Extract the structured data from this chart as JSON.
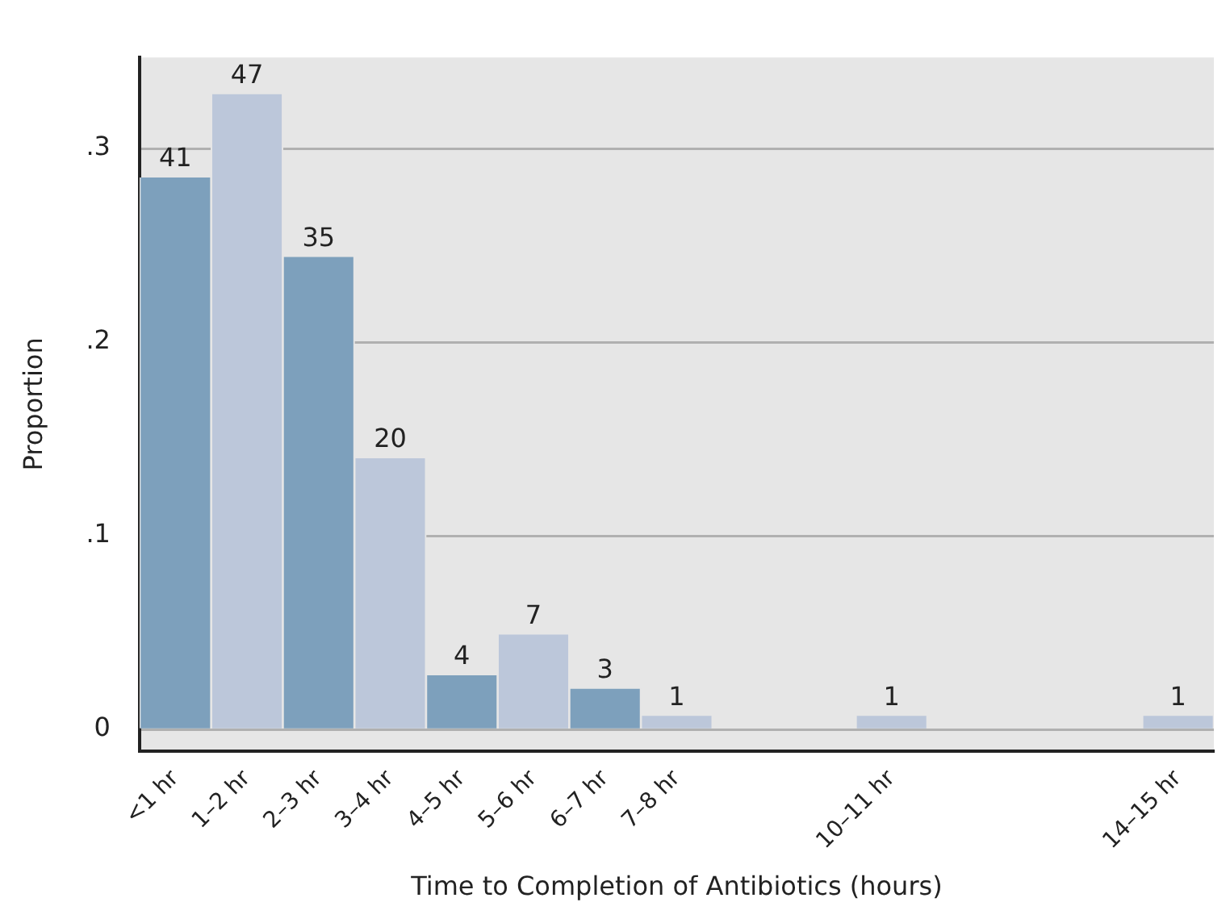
{
  "chart_data": {
    "type": "bar",
    "xlabel": "Time to Completion of Antibiotics (hours)",
    "ylabel": "Proportion",
    "categories": [
      "<1 hr",
      "1–2 hr",
      "2–3 hr",
      "3–4 hr",
      "4–5 hr",
      "5–6 hr",
      "6–7 hr",
      "7–8 hr",
      null,
      null,
      "10–11 hr",
      null,
      null,
      null,
      "14–15 hr"
    ],
    "values": [
      0.285,
      0.328,
      0.244,
      0.14,
      0.028,
      0.049,
      0.021,
      0.007,
      null,
      null,
      0.007,
      null,
      null,
      null,
      0.007
    ],
    "colors": [
      "#7da0bc",
      "#bcc7da",
      "#7da0bc",
      "#bcc7da",
      "#7da0bc",
      "#bcc7da",
      "#7da0bc",
      "#bcc7da",
      "#bcc7da",
      "#bcc7da",
      "#bcc7da",
      "#bcc7da",
      "#bcc7da",
      "#bcc7da",
      "#bcc7da"
    ],
    "annotations": [
      {
        "text": "41",
        "x": "<1 hr",
        "y": 0.285
      },
      {
        "text": "47",
        "x": "1–2 hr",
        "y": 0.328
      },
      {
        "text": "35",
        "x": "2–3 hr",
        "y": 0.244
      },
      {
        "text": "20",
        "x": "3–4 hr",
        "y": 0.14
      },
      {
        "text": "4",
        "x": "4–5 hr",
        "y": 0.028
      },
      {
        "text": "7",
        "x": "5–6 hr",
        "y": 0.049
      },
      {
        "text": "3",
        "x": "6–7 hr",
        "y": 0.021
      },
      {
        "text": "1",
        "x": "7–8 hr",
        "y": 0.007
      },
      {
        "text": "1",
        "x": "10–11 hr",
        "y": 0.007
      },
      {
        "text": "1",
        "x": "14–15 hr",
        "y": 0.007
      }
    ],
    "ylim": [
      -0.011,
      0.347
    ],
    "yticks": [
      {
        "value": 0,
        "label": "0"
      },
      {
        "value": 0.1,
        "label": ".1"
      },
      {
        "value": 0.2,
        "label": ".2"
      },
      {
        "value": 0.3,
        "label": ".3"
      }
    ],
    "grid": "y",
    "legend": false
  }
}
